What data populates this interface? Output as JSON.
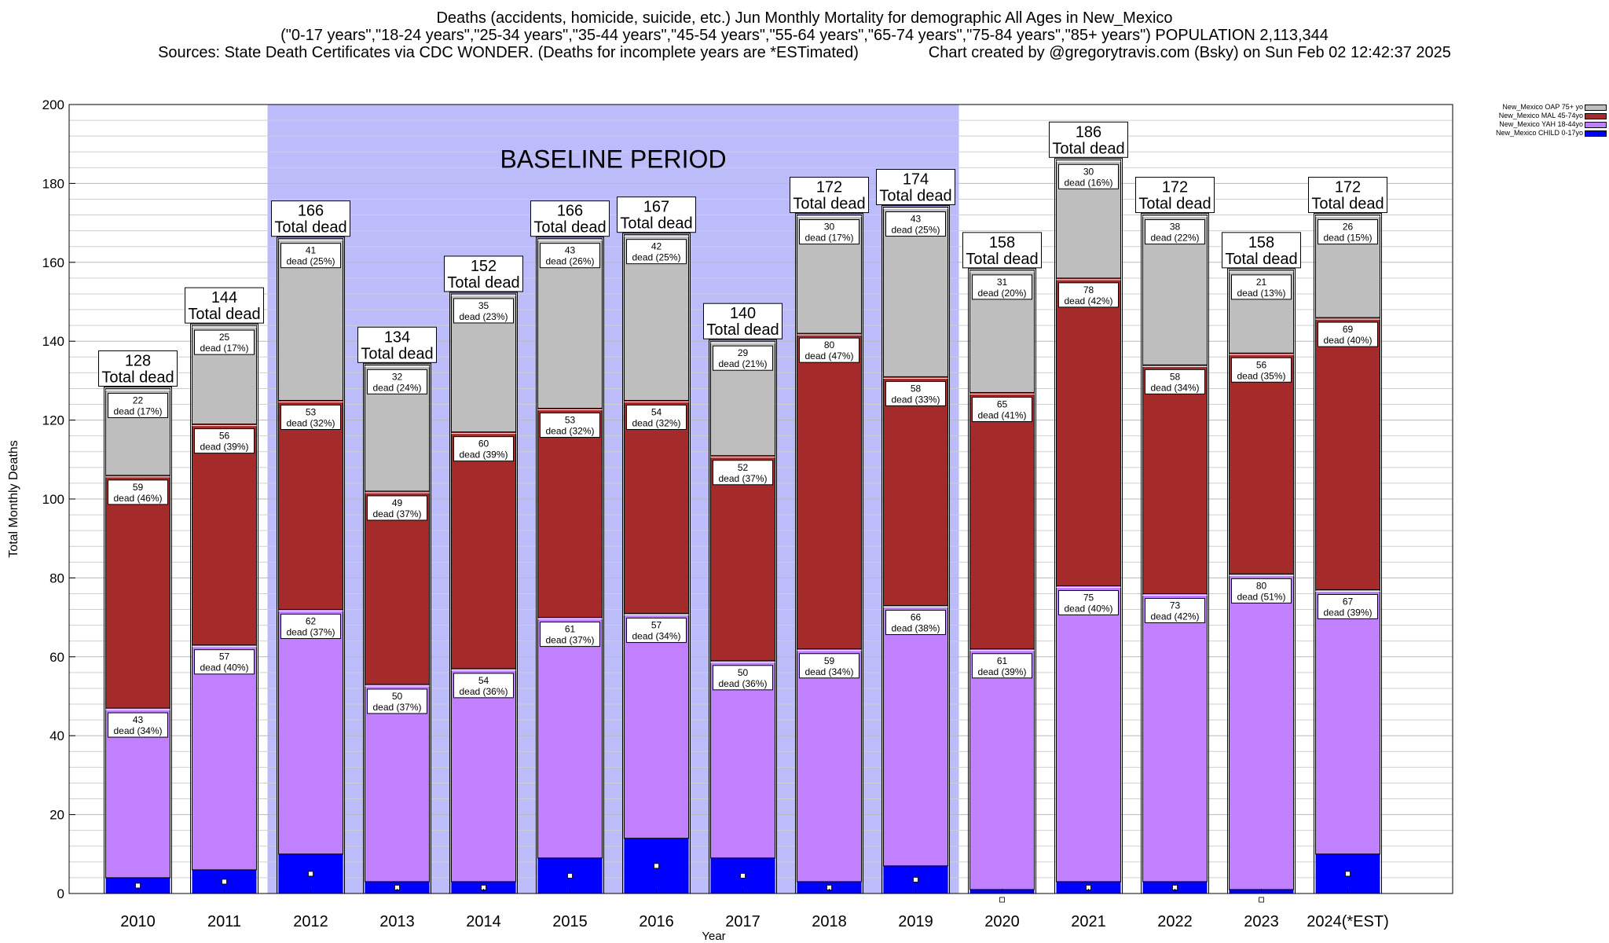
{
  "header": {
    "title": "Deaths (accidents, homicide, suicide, etc.) Jun Monthly Mortality for demographic All Ages in New_Mexico",
    "subtitle": "(\"0-17 years\",\"18-24 years\",\"25-34 years\",\"35-44 years\",\"45-54 years\",\"55-64 years\",\"65-74 years\",\"75-84 years\",\"85+ years\") POPULATION 2,113,344",
    "sources": "Sources: State Death Certificates via CDC WONDER. (Deaths for incomplete years are *ESTimated)",
    "credit": "Chart created by @gregorytravis.com (Bsky) on Sun Feb 02 12:42:37 2025"
  },
  "chart_data": {
    "type": "bar",
    "stacked": true,
    "xlabel": "Year",
    "ylabel": "Total Monthly Deaths",
    "ylim": [
      0,
      200
    ],
    "yticks": [
      0,
      20,
      40,
      60,
      80,
      100,
      120,
      140,
      160,
      180,
      200
    ],
    "grid": true,
    "legend_position": "top-right",
    "categories": [
      "2010",
      "2011",
      "2012",
      "2013",
      "2014",
      "2015",
      "2016",
      "2017",
      "2018",
      "2019",
      "2020",
      "2021",
      "2022",
      "2023",
      "2024(*EST)"
    ],
    "baseline": {
      "label": "BASELINE PERIOD",
      "from": "2012",
      "to": "2019",
      "color": "#bcbcfa"
    },
    "total_label": "Total dead",
    "totals": [
      128,
      144,
      166,
      134,
      152,
      166,
      167,
      140,
      172,
      174,
      158,
      186,
      172,
      158,
      172
    ],
    "series": [
      {
        "name": "New_Mexico CHILD 0-17yo",
        "color": "#0000ff",
        "values": [
          4,
          6,
          10,
          3,
          3,
          9,
          14,
          9,
          3,
          7,
          1,
          3,
          3,
          1,
          10
        ]
      },
      {
        "name": "New_Mexico YAH 18-44yo",
        "color": "#c080ff",
        "values": [
          43,
          57,
          62,
          50,
          54,
          61,
          57,
          50,
          59,
          66,
          61,
          75,
          73,
          80,
          67
        ],
        "labels": [
          "43\ndead (34%)",
          "57\ndead (40%)",
          "62\ndead (37%)",
          "50\ndead (37%)",
          "54\ndead (36%)",
          "61\ndead (37%)",
          "57\ndead (34%)",
          "50\ndead (36%)",
          "59\ndead (34%)",
          "66\ndead (38%)",
          "61\ndead (39%)",
          "75\ndead (40%)",
          "73\ndead (42%)",
          "80\ndead (51%)",
          "67\ndead (39%)"
        ]
      },
      {
        "name": "New_Mexico MAL 45-74yo",
        "color": "#a52a2a",
        "values": [
          59,
          56,
          53,
          49,
          60,
          53,
          54,
          52,
          80,
          58,
          65,
          78,
          58,
          56,
          69
        ],
        "labels": [
          "59\ndead (46%)",
          "56\ndead (39%)",
          "53\ndead (32%)",
          "49\ndead (37%)",
          "60\ndead (39%)",
          "53\ndead (32%)",
          "54\ndead (32%)",
          "52\ndead (37%)",
          "80\ndead (47%)",
          "58\ndead (33%)",
          "65\ndead (41%)",
          "78\ndead (42%)",
          "58\ndead (34%)",
          "56\ndead (35%)",
          "69\ndead (40%)"
        ]
      },
      {
        "name": "New_Mexico OAP 75+ yo",
        "color": "#bebebe",
        "values": [
          22,
          25,
          41,
          32,
          35,
          43,
          42,
          29,
          30,
          43,
          31,
          30,
          38,
          21,
          26
        ],
        "labels": [
          "22\ndead (17%)",
          "25\ndead (17%)",
          "41\ndead (25%)",
          "32\ndead (24%)",
          "35\ndead (23%)",
          "43\ndead (26%)",
          "42\ndead (25%)",
          "29\ndead (21%)",
          "30\ndead (17%)",
          "43\ndead (25%)",
          "31\ndead (20%)",
          "30\ndead (16%)",
          "38\ndead (22%)",
          "21\ndead (13%)",
          "26\ndead (15%)"
        ]
      }
    ]
  }
}
